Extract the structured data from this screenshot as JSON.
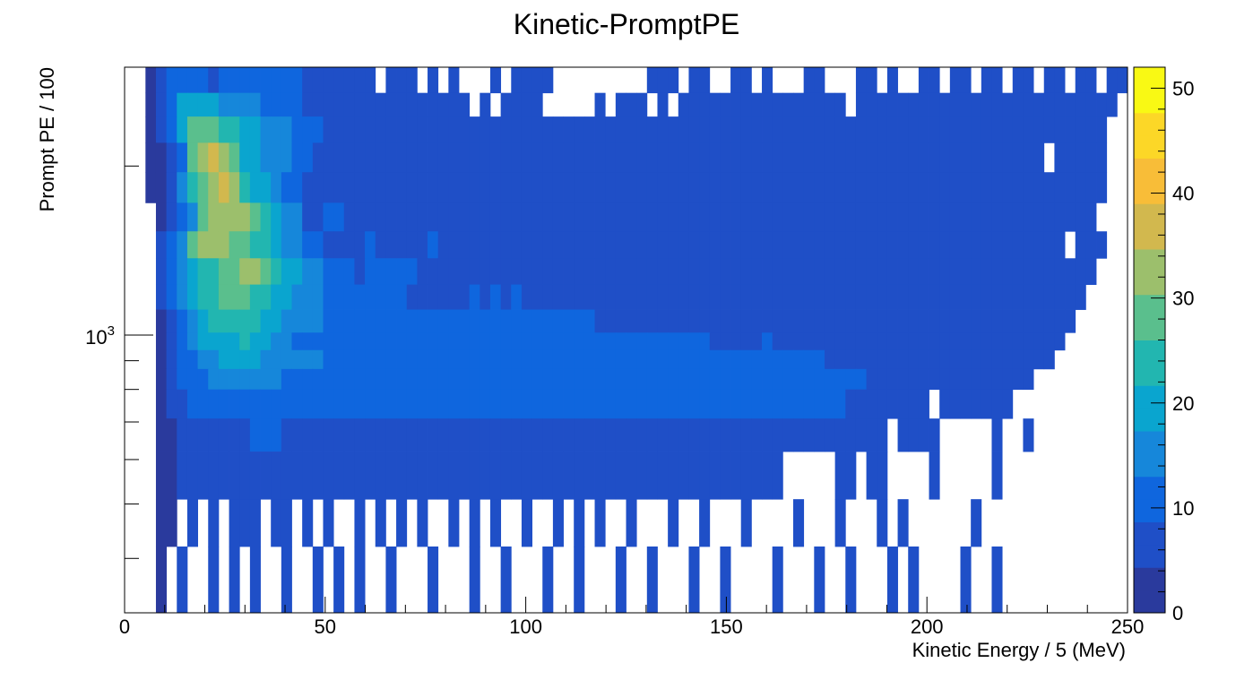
{
  "chart_data": {
    "type": "heatmap",
    "title": "Kinetic-PromptPE",
    "xlabel": "Kinetic Energy / 5 (MeV)",
    "ylabel": "Prompt PE / 100",
    "xlim": [
      0,
      250
    ],
    "x_bin_width": 5,
    "x_ticks": [
      0,
      50,
      100,
      150,
      200,
      250
    ],
    "y_scale": "log",
    "ylim": [
      320,
      3000
    ],
    "y_major_tick": {
      "value": 1000,
      "base": "10",
      "exp": "3"
    },
    "y_bin_edges": [
      320,
      420,
      510,
      620,
      710,
      800,
      870,
      940,
      1010,
      1110,
      1230,
      1370,
      1530,
      1720,
      1950,
      2200,
      2450,
      2700,
      3000
    ],
    "colorbar": {
      "min": 0,
      "max": 52,
      "ticks": [
        0,
        10,
        20,
        30,
        40,
        50
      ],
      "palette": [
        "#2a3a9d",
        "#1f4fc7",
        "#0f66de",
        "#1687da",
        "#0aa5cf",
        "#22b6b0",
        "#5abf8d",
        "#9cbf6c",
        "#d2b84e",
        "#f8bd38",
        "#fcd727",
        "#f9f914"
      ]
    },
    "rows": [
      "..2344443444444443333333.333.3.3...3.3333.........333.33..33.3...33...33.3..33.33.33.33.33.33.33",
      "..2346666555544443333333333333333.3.3333.....3.333.3.3333333333333333.3333333333333333333333333",
      "..23468887766555444333333333333333333333333333333333333333333333333333333333333333333333333333..",
      "..223489A9866555443333333333333333333333333333333333333333333333333333333333333333333333.33333..",
      "..2235789A976654433333333333333333333333333333333333333333333333333333333333333333333333333333..",
      "...234589999876553344333333333333333333333333333333333333333333333333333333333333333333333333..",
      "...345899988776554433334333334333333333333333333333333333333333333333333333333333333333333.333.",
      "...345677889987665544434444433333333333333333333333333333333333333333333333333333333333333333..",
      "...34567788877665554444444433333343434333333333333333333333333333333333333333333333333333333..",
      "...2345677777665555444444444444444444444444443333333333333333333333333333333333333333333333..",
      "...234566667665544444444444444444444444444444444444444443333343333333333333333333333333333..",
      "...23445566665555554444444444444444444444444444444444444444444444443333333333333333333333..",
      "...234445555555444444444444444444444444444444444444444444444444444444443333333333333333....",
      "...23344444444444444444444444444444444444444444444444444444444444444433333333.3333333.....",
      "...2233333334443333333333333333333333333333333333333333333333333333333333.3333.....3..3....",
      "...223333333333333333333333333333333333333333333333333333333333.....33.33....3.....3.......",
      "...22.3.3.333.33.3.3..3.3.3.3..3.3.3..3..3.3.3..3...3..3...3....3...3...3.3......3........",
      "...2.3..3.3.3..3..3.3.3..3...3...3..3...3..3...3..3...3..3....3...3..3...3.3....3..3......"
    ]
  }
}
